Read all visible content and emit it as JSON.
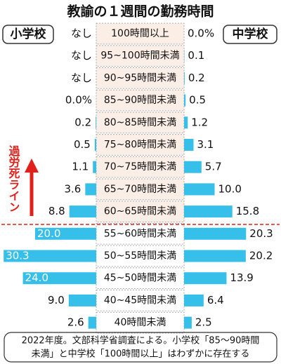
{
  "chart_data": {
    "type": "butterfly",
    "title": "教諭の１週間の勤務時間",
    "categories": [
      "100時間以上",
      "95~100時間未満",
      "90~95時間未満",
      "85~90時間未満",
      "80~85時間未満",
      "75~80時間未満",
      "70~75時間未満",
      "65~70時間未満",
      "60~65時間未満",
      "55~60時間未満",
      "50~55時間未満",
      "45~50時間未満",
      "40~45時間未満",
      "40時間未満"
    ],
    "series": [
      {
        "name": "小学校",
        "color": "#36bfe8",
        "values": [
          0,
          0,
          0,
          0,
          0.2,
          0.5,
          1.1,
          3.6,
          8.8,
          20.0,
          30.3,
          24.0,
          9.0,
          2.6
        ],
        "value_labels": [
          "なし",
          "なし",
          "なし",
          "0.0%",
          "0.2",
          "0.5",
          "1.1",
          "3.6",
          "8.8",
          "20.0",
          "30.3",
          "24.0",
          "9.0",
          "2.6"
        ]
      },
      {
        "name": "中学校",
        "color": "#36bfe8",
        "values": [
          0,
          0.1,
          0.2,
          0.5,
          1.2,
          3.1,
          5.7,
          10.0,
          15.8,
          20.3,
          20.2,
          13.9,
          6.4,
          2.5
        ],
        "value_labels": [
          "0.0%",
          "0.1",
          "0.2",
          "0.5",
          "1.2",
          "3.1",
          "5.7",
          "10.0",
          "15.8",
          "20.3",
          "20.2",
          "13.9",
          "6.4",
          "2.5"
        ]
      }
    ],
    "annotation": "過労死ライン",
    "note": [
      "2022年度。文部科学省調査による。小学校「85～90時間",
      "未満」と中学校「100時間以上」はわずかに存在する"
    ]
  }
}
